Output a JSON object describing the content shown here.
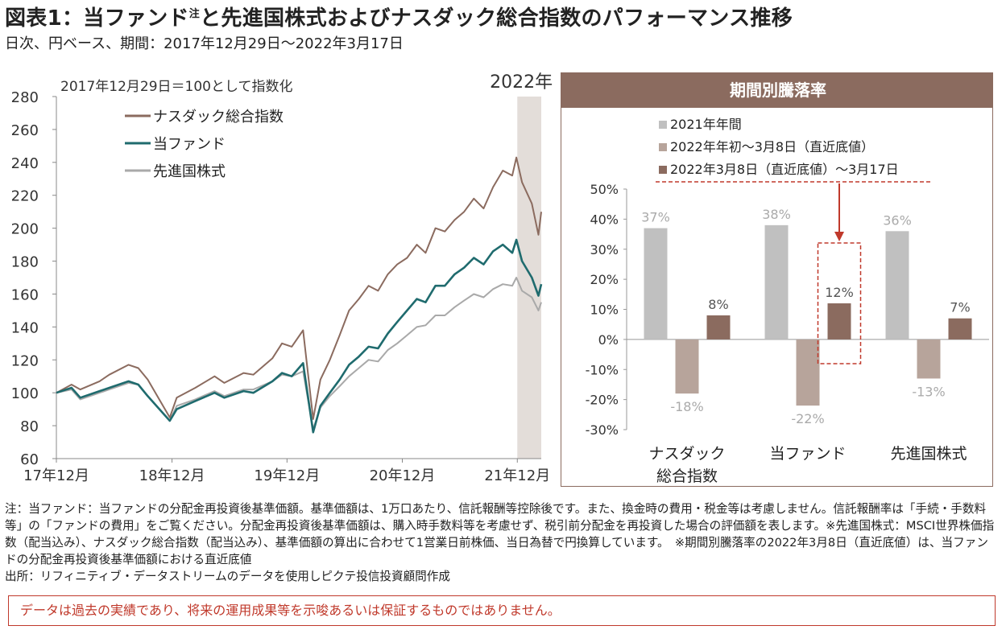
{
  "header": {
    "title_main": "図表1：当ファンド",
    "title_sup": "注",
    "title_rest": "と先進国株式およびナスダック総合指数のパフォーマンス推移",
    "subtitle": "日次、円ベース、期間：2017年12月29日～2022年3月17日"
  },
  "colors": {
    "nasdaq": "#8b6b5f",
    "fund": "#1f6b6e",
    "developed": "#a9a9a9",
    "bar_2021": "#c0c0c0",
    "bar_2022_ytd": "#b7a49b",
    "bar_recent": "#8b6b5f",
    "panel_header": "#8b6b5f",
    "highlight": "#c0392b",
    "shade": "#e3ddd9"
  },
  "chart_data": [
    {
      "type": "line",
      "note": "2017年12月29日＝100として指数化",
      "shaded_label": "2022年",
      "ylim": [
        60,
        280
      ],
      "yticks": [
        "60",
        "80",
        "100",
        "120",
        "140",
        "160",
        "180",
        "200",
        "220",
        "240",
        "260",
        "280"
      ],
      "xticks": [
        "17年12月",
        "18年12月",
        "19年12月",
        "20年12月",
        "21年12月"
      ],
      "x_dates": [
        "2017-12-29",
        "2018-02",
        "2018-03",
        "2018-05",
        "2018-06",
        "2018-08",
        "2018-09",
        "2018-10",
        "2018-12-24",
        "2019-01",
        "2019-03",
        "2019-05",
        "2019-06",
        "2019-08",
        "2019-09",
        "2019-11",
        "2019-12",
        "2020-01",
        "2020-02-20",
        "2020-03-23",
        "2020-04",
        "2020-05",
        "2020-06",
        "2020-07",
        "2020-08",
        "2020-09",
        "2020-10",
        "2020-11",
        "2020-12",
        "2021-01",
        "2021-02",
        "2021-03",
        "2021-04",
        "2021-05",
        "2021-06",
        "2021-07",
        "2021-08",
        "2021-09",
        "2021-10",
        "2021-11",
        "2021-12",
        "2021-12-28",
        "2022-01",
        "2022-02",
        "2022-03-08",
        "2022-03-17"
      ],
      "series": [
        {
          "name": "ナスダック総合指数",
          "values": [
            100,
            105,
            102,
            107,
            111,
            117,
            115,
            108,
            85,
            97,
            103,
            110,
            106,
            112,
            111,
            121,
            130,
            128,
            138,
            84,
            108,
            120,
            135,
            150,
            157,
            165,
            162,
            172,
            178,
            182,
            190,
            185,
            200,
            198,
            205,
            210,
            218,
            212,
            225,
            235,
            232,
            243,
            228,
            215,
            196,
            210
          ]
        },
        {
          "name": "当ファンド",
          "values": [
            100,
            103,
            97,
            101,
            103,
            107,
            105,
            98,
            83,
            90,
            95,
            100,
            97,
            101,
            100,
            107,
            112,
            110,
            118,
            76,
            92,
            100,
            108,
            117,
            122,
            128,
            127,
            136,
            143,
            150,
            157,
            155,
            165,
            165,
            172,
            176,
            182,
            178,
            186,
            190,
            185,
            193,
            180,
            170,
            159,
            166
          ]
        },
        {
          "name": "先進国株式",
          "values": [
            100,
            102,
            96,
            100,
            102,
            106,
            105,
            98,
            83,
            92,
            96,
            101,
            98,
            102,
            102,
            107,
            111,
            110,
            113,
            78,
            91,
            98,
            104,
            110,
            115,
            120,
            119,
            126,
            130,
            135,
            140,
            141,
            147,
            147,
            152,
            156,
            160,
            158,
            163,
            166,
            165,
            170,
            162,
            158,
            150,
            155
          ]
        }
      ]
    },
    {
      "type": "bar",
      "title": "期間別騰落率",
      "categories": [
        "ナスダック総合指数",
        "当ファンド",
        "先進国株式"
      ],
      "category_lines": [
        [
          "ナスダック",
          "総合指数"
        ],
        [
          "当ファンド"
        ],
        [
          "先進国株式"
        ]
      ],
      "ylim": [
        -30,
        50
      ],
      "yticks": [
        "50%",
        "40%",
        "30%",
        "20%",
        "10%",
        "0%",
        "-10%",
        "-20%",
        "-30%"
      ],
      "series": [
        {
          "name": "2021年年間",
          "values": [
            37,
            38,
            36
          ],
          "labels": [
            "37%",
            "38%",
            "36%"
          ]
        },
        {
          "name": "2022年年初～3月8日（直近底値）",
          "values": [
            -18,
            -22,
            -13
          ],
          "labels": [
            "-18%",
            "-22%",
            "-13%"
          ]
        },
        {
          "name": "2022年3月8日（直近底値）～3月17日",
          "values": [
            8,
            12,
            7
          ],
          "labels": [
            "8%",
            "12%",
            "7%"
          ]
        }
      ]
    }
  ],
  "notes": [
    "注：当ファンド：当ファンドの分配金再投資後基準価額。基準価額は、1万口あたり、信託報酬等控除後です。また、換金時の費用・税金等は考慮しません。信託報酬率は「手続・手数料等」の「ファンドの費用」をご覧ください。分配金再投資後基準価額は、購入時手数料等を考慮せず、税引前分配金を再投資した場合の評価額を表します。※先進国株式：MSCI世界株価指数（配当込み）、ナスダック総合指数（配当込み）、基準価額の算出に合わせて1営業日前株価、当日為替で円換算しています。　※期間別騰落率の2022年3月8日（直近底値）は、当ファンドの分配金再投資後基準価額における直近底値",
    "出所：リフィニティブ・データストリームのデータを使用しピクテ投信投資顧問作成"
  ],
  "disclaimer": "データは過去の実績であり、将来の運用成果等を示唆あるいは保証するものではありません。"
}
